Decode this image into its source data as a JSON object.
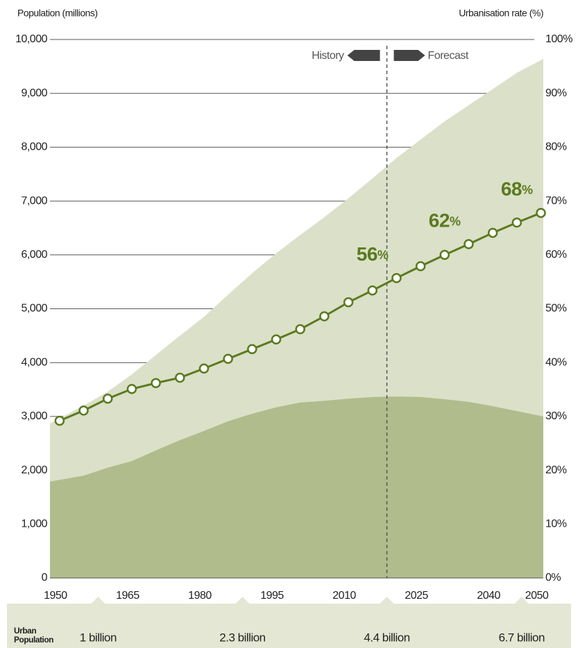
{
  "chart_data": {
    "type": "area-line",
    "y_label": "Population (millions)",
    "y2_label": "Urbanisation rate (%)",
    "xlim": [
      1948,
      2050.5
    ],
    "xticks": [
      1950,
      1965,
      1980,
      1995,
      2010,
      2025,
      2040,
      2050
    ],
    "ylim": [
      0,
      10000
    ],
    "yticks": [
      0,
      {
        "value": 1000,
        "label": "1,000"
      },
      {
        "value": 2000,
        "label": "2,000"
      },
      {
        "value": 3000,
        "label": "3,000"
      },
      {
        "value": 4000,
        "label": "4,000"
      },
      {
        "value": 5000,
        "label": "5,000"
      },
      {
        "value": 6000,
        "label": "6,000"
      },
      {
        "value": 7000,
        "label": "7,000"
      },
      {
        "value": 8000,
        "label": "8,000"
      },
      {
        "value": 9000,
        "label": "9,000"
      },
      {
        "value": 10000,
        "label": "10,000"
      }
    ],
    "y2lim": [
      0,
      100
    ],
    "y2ticks": [
      {
        "value": 0,
        "label": "0%"
      },
      {
        "value": 10,
        "label": "10%"
      },
      {
        "value": 20,
        "label": "20%"
      },
      {
        "value": 30,
        "label": "30%"
      },
      {
        "value": 40,
        "label": "40%"
      },
      {
        "value": 50,
        "label": "50%"
      },
      {
        "value": 60,
        "label": "60%"
      },
      {
        "value": 70,
        "label": "70%"
      },
      {
        "value": 80,
        "label": "80%"
      },
      {
        "value": 90,
        "label": "90%"
      },
      {
        "value": 100,
        "label": "100%"
      }
    ],
    "grid": true,
    "series": [
      {
        "kind": "area",
        "color": "#dbe0c8",
        "x": [
          1948,
          1955,
          1960,
          1965,
          1970,
          1975,
          1980,
          1985,
          1990,
          1995,
          2000,
          2005,
          2010,
          2015,
          2020,
          2025,
          2030,
          2035,
          2040,
          2045,
          2050.5
        ],
        "values": [
          2870,
          3200,
          3460,
          3780,
          4140,
          4500,
          4850,
          5260,
          5660,
          6030,
          6370,
          6700,
          7050,
          7420,
          7800,
          8140,
          8480,
          8780,
          9080,
          9380,
          9640
        ]
      },
      {
        "kind": "area",
        "color": "#b0bc8c",
        "x": [
          1948,
          1955,
          1960,
          1965,
          1970,
          1975,
          1980,
          1985,
          1990,
          1995,
          2000,
          2005,
          2010,
          2015,
          2020,
          2025,
          2030,
          2035,
          2040,
          2045,
          2050.5
        ],
        "values": [
          1790,
          1900,
          2050,
          2170,
          2370,
          2560,
          2730,
          2910,
          3050,
          3170,
          3260,
          3290,
          3330,
          3360,
          3370,
          3360,
          3320,
          3270,
          3190,
          3100,
          3000
        ]
      },
      {
        "kind": "line",
        "axis": "y2",
        "color": "#5a7a1f",
        "x": [
          1950,
          1955,
          1960,
          1965,
          1970,
          1975,
          1980,
          1985,
          1990,
          1995,
          2000,
          2005,
          2010,
          2015,
          2020,
          2025,
          2030,
          2035,
          2040,
          2045,
          2050
        ],
        "values": [
          29.2,
          31.1,
          33.3,
          35.1,
          36.2,
          37.2,
          38.9,
          40.7,
          42.5,
          44.3,
          46.2,
          48.6,
          51.2,
          53.4,
          55.7,
          57.9,
          60.0,
          62.0,
          64.1,
          66.0,
          67.8
        ],
        "value_labels": [
          null,
          null,
          null,
          null,
          null,
          null,
          null,
          null,
          null,
          null,
          null,
          null,
          null,
          null,
          "56%",
          null,
          null,
          "62%",
          null,
          null,
          "68%"
        ]
      }
    ],
    "divider": {
      "x": 2018,
      "left_label": "History",
      "right_label": "Forecast"
    },
    "urban_population": {
      "label": "Urban Population",
      "items": [
        {
          "x": 1958,
          "label": "1 billion"
        },
        {
          "x": 1988,
          "label": "2.3 billion"
        },
        {
          "x": 2018,
          "label": "4.4 billion"
        },
        {
          "x": 2046,
          "label": "6.7 billion"
        }
      ]
    }
  }
}
